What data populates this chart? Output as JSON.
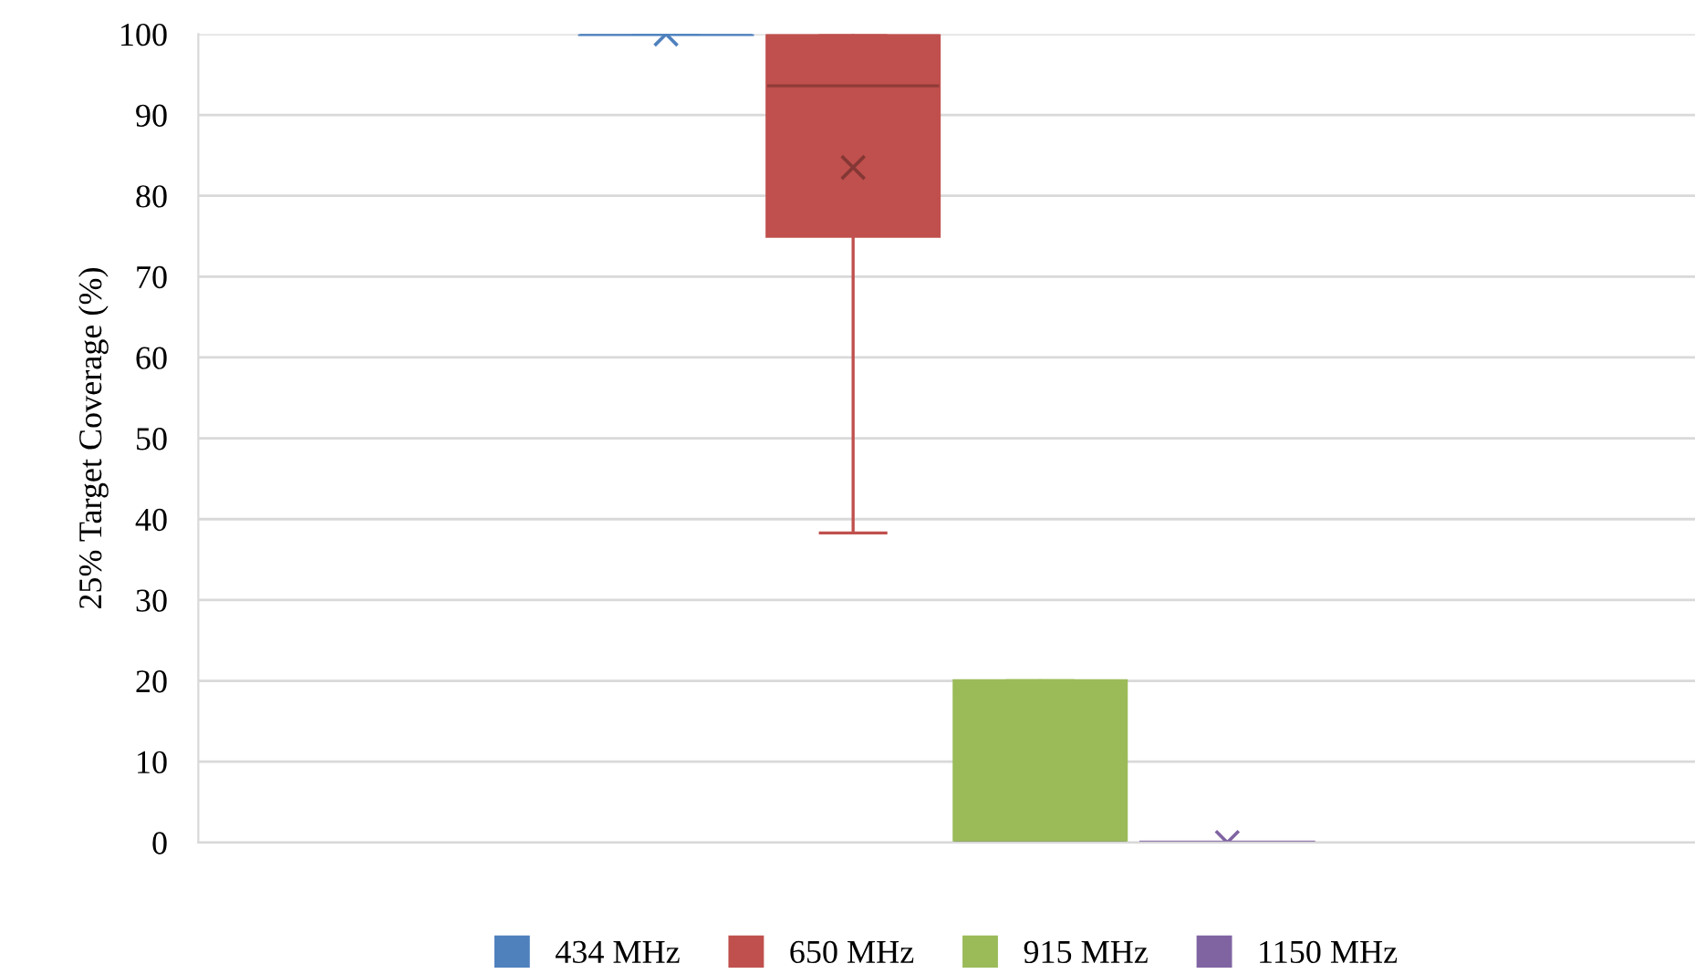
{
  "chart_data": {
    "type": "box",
    "ylabel": "25% Target Coverage (%)",
    "categories": [
      null
    ],
    "ylim": [
      0,
      100
    ],
    "yticks": [
      0,
      10,
      20,
      30,
      40,
      50,
      60,
      70,
      80,
      90,
      100
    ],
    "grid": "y",
    "legend": "bottom",
    "marker": "cross",
    "series": [
      {
        "name": "434 MHz",
        "color": "#4f81bd",
        "boxes": [
          {
            "low": 100,
            "q1": 100,
            "median": 100,
            "q3": 100,
            "high": 100,
            "mean": 100
          }
        ]
      },
      {
        "name": "650 MHz",
        "color": "#c0504d",
        "boxes": [
          {
            "low": 38.3,
            "q1": 75,
            "median": 93.6,
            "q3": 100,
            "high": 100,
            "mean": 83.5
          }
        ]
      },
      {
        "name": "915 MHz",
        "color": "#9bbb59",
        "boxes": [
          {
            "low": 0,
            "q1": 0,
            "median": 0,
            "q3": 20,
            "high": 20
          }
        ]
      },
      {
        "name": "1150 MHz",
        "color": "#8064a2",
        "boxes": [
          {
            "low": 0,
            "q1": 0,
            "median": 0,
            "q3": 0,
            "high": 0,
            "mean": 0
          }
        ]
      }
    ]
  }
}
